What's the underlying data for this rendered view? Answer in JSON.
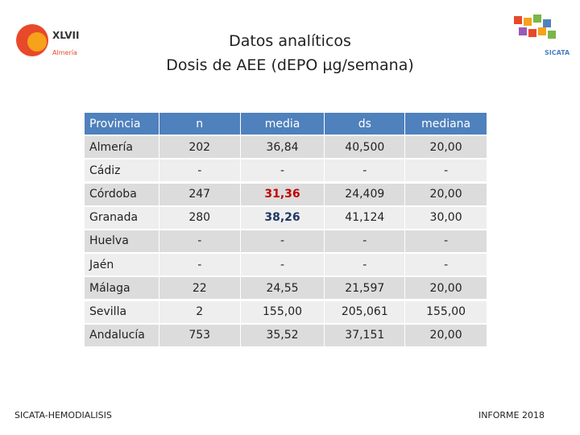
{
  "header": {
    "title_line1": "Datos analíticos",
    "title_line2": "Dosis de AEE (dEPO µg/semana)",
    "logo_left": {
      "edition": "XLVII",
      "city": "Almería"
    },
    "logo_right": {
      "name": "SICATA"
    }
  },
  "table": {
    "columns": [
      "Provincia",
      "n",
      "media",
      "ds",
      "mediana"
    ],
    "rows": [
      [
        "Almería",
        "202",
        "36,84",
        "40,500",
        "20,00"
      ],
      [
        "Cádiz",
        "-",
        "-",
        "-",
        "-"
      ],
      [
        "Córdoba",
        "247",
        "31,36",
        "24,409",
        "20,00"
      ],
      [
        "Granada",
        "280",
        "38,26",
        "41,124",
        "30,00"
      ],
      [
        "Huelva",
        "-",
        "-",
        "-",
        "-"
      ],
      [
        "Jaén",
        "-",
        "-",
        "-",
        "-"
      ],
      [
        "Málaga",
        "22",
        "24,55",
        "21,597",
        "20,00"
      ],
      [
        "Sevilla",
        "2",
        "155,00",
        "205,061",
        "155,00"
      ],
      [
        "Andalucía",
        "753",
        "35,52",
        "37,151",
        "20,00"
      ]
    ]
  },
  "footer": {
    "left": "SICATA-HEMODIALISIS",
    "right": "INFORME 2018"
  }
}
